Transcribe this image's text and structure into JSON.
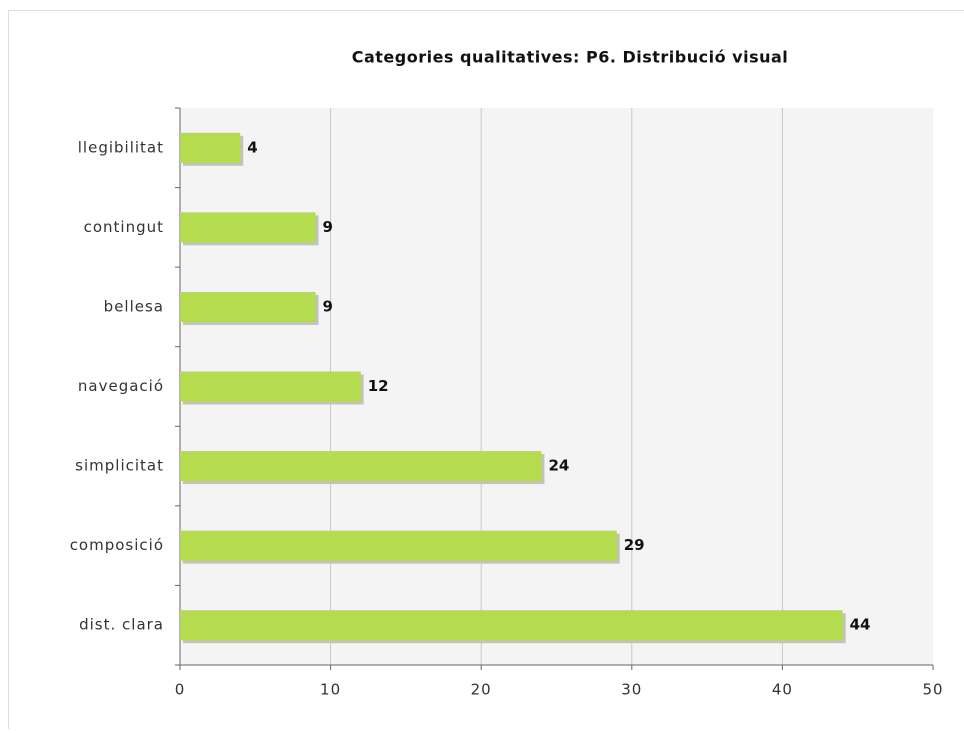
{
  "chart_data": {
    "type": "hbar",
    "title": "Categories qualitatives: P6. Distribució visual",
    "categories": [
      "llegibilitat",
      "contingut",
      "bellesa",
      "navegació",
      "simplicitat",
      "composició",
      "dist. clara"
    ],
    "values": [
      4,
      9,
      9,
      12,
      24,
      29,
      44
    ],
    "color": "#b5db4f",
    "xlim": [
      0,
      50
    ],
    "xticks": [
      0,
      10,
      20,
      30,
      40,
      50
    ],
    "grid": true
  }
}
